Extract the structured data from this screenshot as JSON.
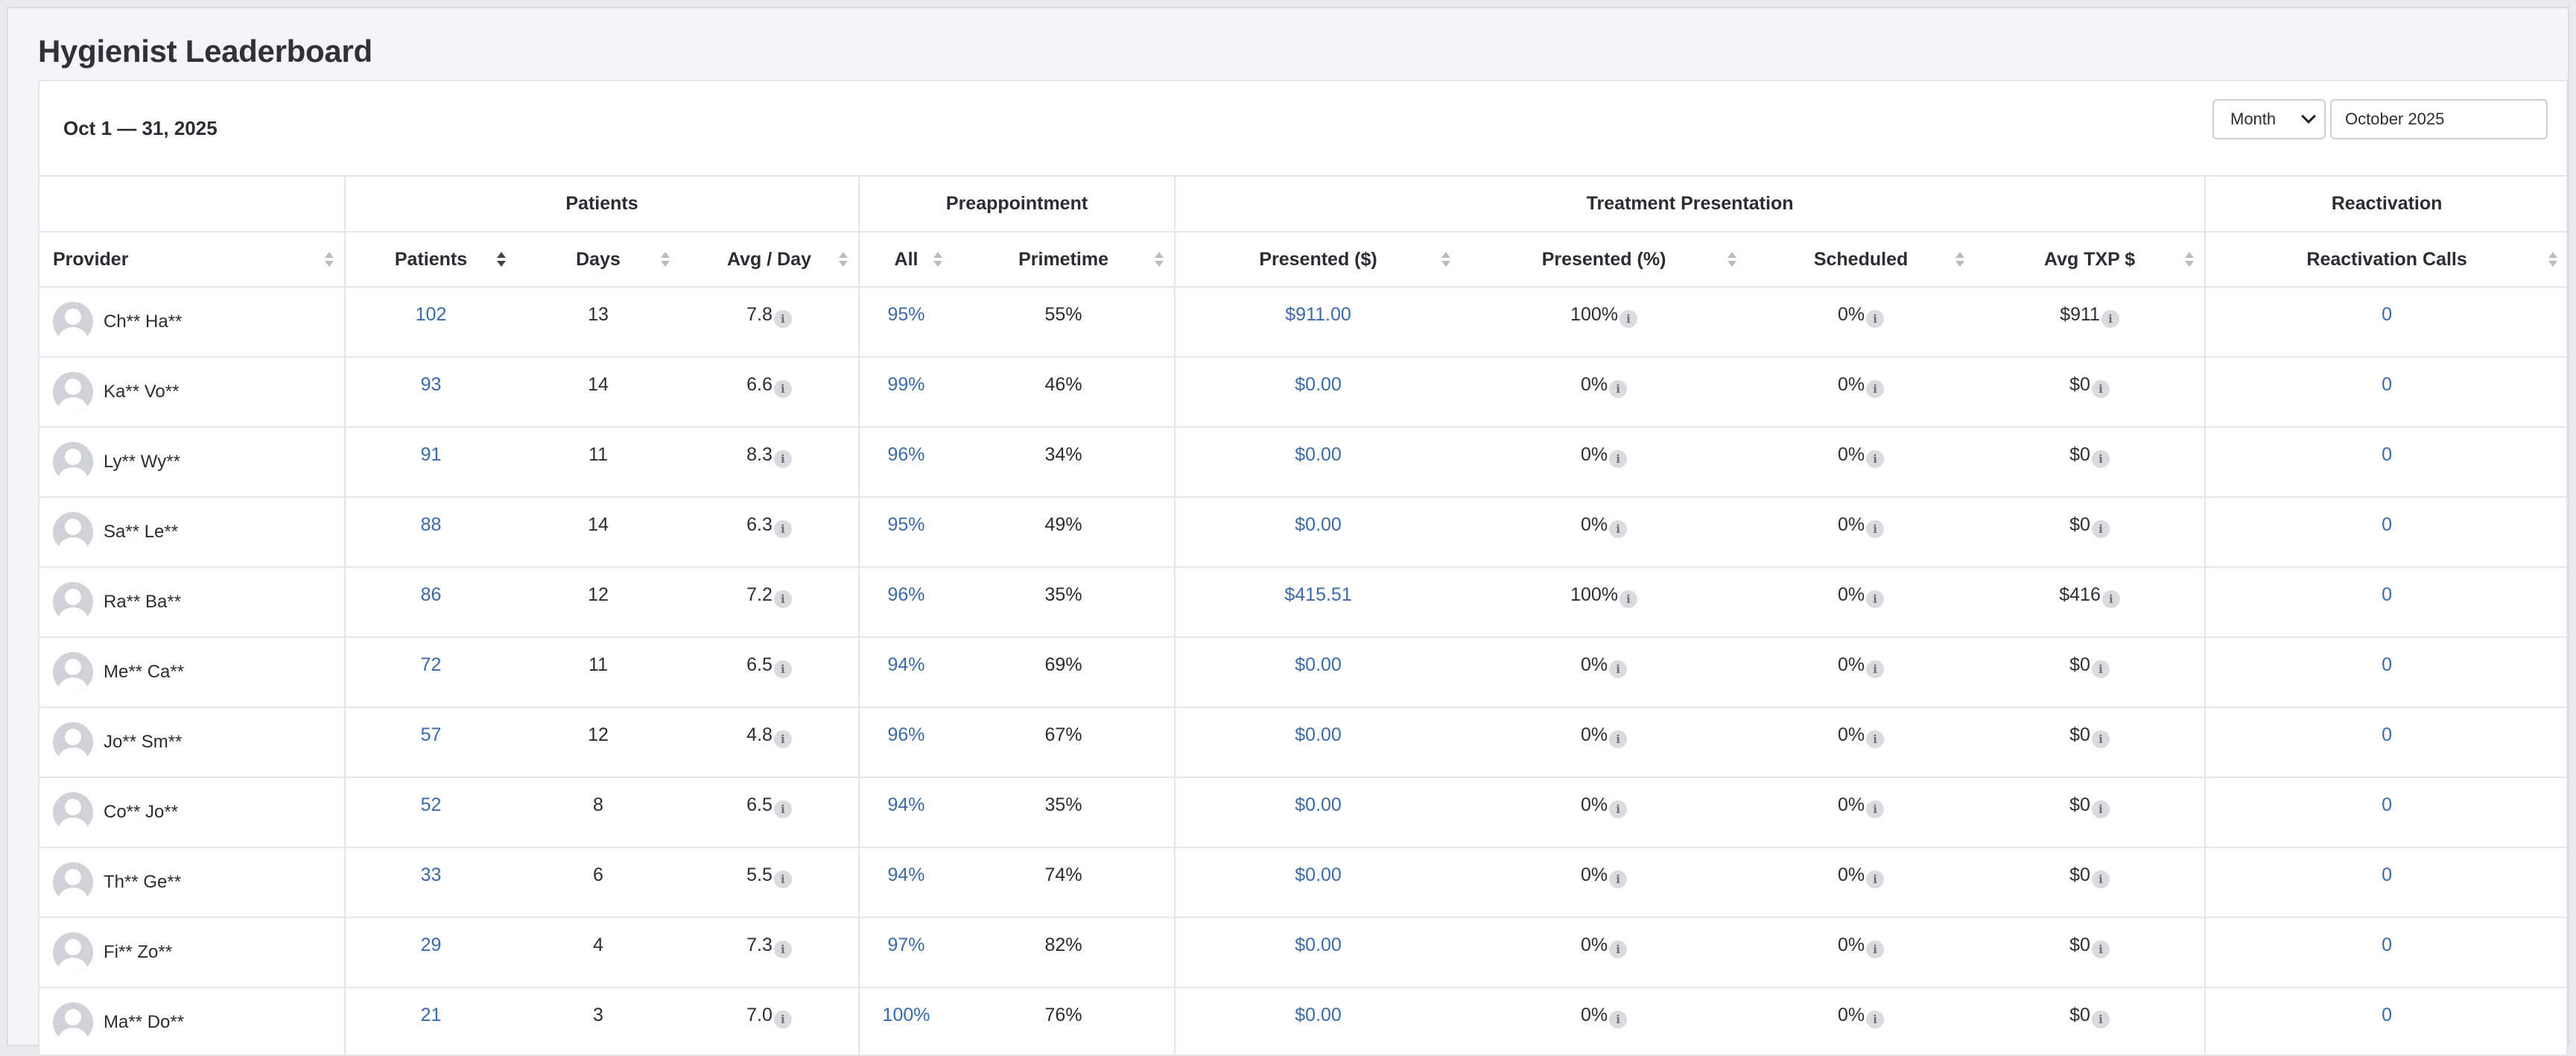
{
  "page": {
    "title": "Hygienist Leaderboard"
  },
  "toolbar": {
    "date_range": "Oct 1 — 31, 2025",
    "period_select": "Month",
    "month_value": "October 2025"
  },
  "groups": {
    "patients": "Patients",
    "preappointment": "Preappointment",
    "treatment": "Treatment Presentation",
    "reactivation": "Reactivation"
  },
  "columns": {
    "provider": "Provider",
    "patients": "Patients",
    "days": "Days",
    "avg_day": "Avg / Day",
    "all": "All",
    "primetime": "Primetime",
    "presented_usd": "Presented ($)",
    "presented_pct": "Presented (%)",
    "scheduled": "Scheduled",
    "avg_txp": "Avg TXP $",
    "reactivation_calls": "Reactivation Calls"
  },
  "info_glyph": "i",
  "rows": [
    {
      "provider": "Ch** Ha**",
      "patients": "102",
      "days": "13",
      "avg_day": "7.8",
      "all": "95%",
      "primetime": "55%",
      "presented_usd": "$911.00",
      "presented_pct": "100%",
      "scheduled": "0%",
      "avg_txp": "$911",
      "reactivation_calls": "0"
    },
    {
      "provider": "Ka** Vo**",
      "patients": "93",
      "days": "14",
      "avg_day": "6.6",
      "all": "99%",
      "primetime": "46%",
      "presented_usd": "$0.00",
      "presented_pct": "0%",
      "scheduled": "0%",
      "avg_txp": "$0",
      "reactivation_calls": "0"
    },
    {
      "provider": "Ly** Wy**",
      "patients": "91",
      "days": "11",
      "avg_day": "8.3",
      "all": "96%",
      "primetime": "34%",
      "presented_usd": "$0.00",
      "presented_pct": "0%",
      "scheduled": "0%",
      "avg_txp": "$0",
      "reactivation_calls": "0"
    },
    {
      "provider": "Sa** Le**",
      "patients": "88",
      "days": "14",
      "avg_day": "6.3",
      "all": "95%",
      "primetime": "49%",
      "presented_usd": "$0.00",
      "presented_pct": "0%",
      "scheduled": "0%",
      "avg_txp": "$0",
      "reactivation_calls": "0"
    },
    {
      "provider": "Ra** Ba**",
      "patients": "86",
      "days": "12",
      "avg_day": "7.2",
      "all": "96%",
      "primetime": "35%",
      "presented_usd": "$415.51",
      "presented_pct": "100%",
      "scheduled": "0%",
      "avg_txp": "$416",
      "reactivation_calls": "0"
    },
    {
      "provider": "Me** Ca**",
      "patients": "72",
      "days": "11",
      "avg_day": "6.5",
      "all": "94%",
      "primetime": "69%",
      "presented_usd": "$0.00",
      "presented_pct": "0%",
      "scheduled": "0%",
      "avg_txp": "$0",
      "reactivation_calls": "0"
    },
    {
      "provider": "Jo** Sm**",
      "patients": "57",
      "days": "12",
      "avg_day": "4.8",
      "all": "96%",
      "primetime": "67%",
      "presented_usd": "$0.00",
      "presented_pct": "0%",
      "scheduled": "0%",
      "avg_txp": "$0",
      "reactivation_calls": "0"
    },
    {
      "provider": "Co** Jo**",
      "patients": "52",
      "days": "8",
      "avg_day": "6.5",
      "all": "94%",
      "primetime": "35%",
      "presented_usd": "$0.00",
      "presented_pct": "0%",
      "scheduled": "0%",
      "avg_txp": "$0",
      "reactivation_calls": "0"
    },
    {
      "provider": "Th** Ge**",
      "patients": "33",
      "days": "6",
      "avg_day": "5.5",
      "all": "94%",
      "primetime": "74%",
      "presented_usd": "$0.00",
      "presented_pct": "0%",
      "scheduled": "0%",
      "avg_txp": "$0",
      "reactivation_calls": "0"
    },
    {
      "provider": "Fi** Zo**",
      "patients": "29",
      "days": "4",
      "avg_day": "7.3",
      "all": "97%",
      "primetime": "82%",
      "presented_usd": "$0.00",
      "presented_pct": "0%",
      "scheduled": "0%",
      "avg_txp": "$0",
      "reactivation_calls": "0"
    },
    {
      "provider": "Ma** Do**",
      "patients": "21",
      "days": "3",
      "avg_day": "7.0",
      "all": "100%",
      "primetime": "76%",
      "presented_usd": "$0.00",
      "presented_pct": "0%",
      "scheduled": "0%",
      "avg_txp": "$0",
      "reactivation_calls": "0"
    }
  ]
}
